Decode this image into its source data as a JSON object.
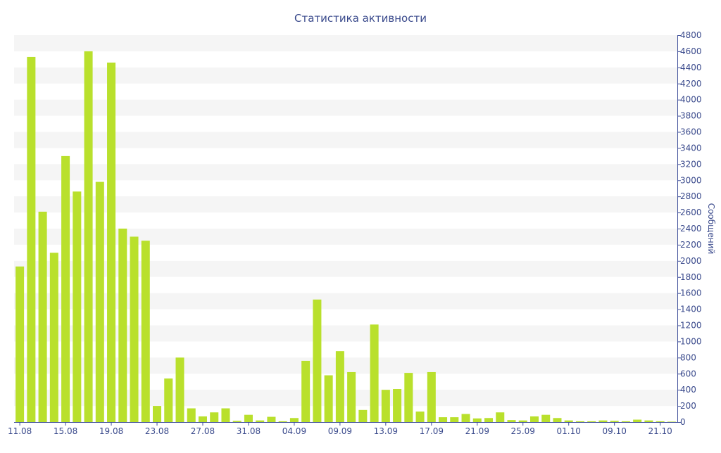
{
  "chart_data": {
    "type": "bar",
    "title": "Статистика активности",
    "xlabel": "",
    "ylabel": "Сообщений",
    "ylim": [
      0,
      4800
    ],
    "y_ticks": [
      0,
      200,
      400,
      600,
      800,
      1000,
      1200,
      1400,
      1600,
      1800,
      2000,
      2200,
      2400,
      2600,
      2800,
      3000,
      3200,
      3400,
      3600,
      3800,
      4000,
      4200,
      4400,
      4600,
      4800
    ],
    "y_axis_side": "right",
    "grid": "horizontal alternating bands",
    "legend": "none",
    "colors": {
      "bar": "#b9e02c",
      "band": "#f5f5f5",
      "axis": "#3f4f9a",
      "text": "#3a4a8c"
    },
    "x_tick_labels": [
      "11.08",
      "15.08",
      "19.08",
      "23.08",
      "27.08",
      "31.08",
      "04.09",
      "09.09",
      "13.09",
      "17.09",
      "21.09",
      "25.09",
      "01.10",
      "09.10",
      "21.10"
    ],
    "x_tick_label_bar_index": [
      0,
      4,
      8,
      12,
      16,
      20,
      24,
      28,
      32,
      36,
      40,
      44,
      48,
      52,
      56
    ],
    "values": [
      1930,
      4530,
      2610,
      2100,
      3300,
      2860,
      4600,
      2980,
      4460,
      2400,
      2300,
      2250,
      200,
      540,
      800,
      170,
      70,
      120,
      170,
      15,
      90,
      20,
      65,
      10,
      50,
      760,
      1520,
      580,
      880,
      620,
      150,
      1210,
      400,
      410,
      610,
      130,
      620,
      60,
      60,
      100,
      45,
      50,
      120,
      25,
      20,
      70,
      90,
      50,
      20,
      10,
      10,
      20,
      15,
      10,
      30,
      20,
      10,
      5
    ]
  }
}
